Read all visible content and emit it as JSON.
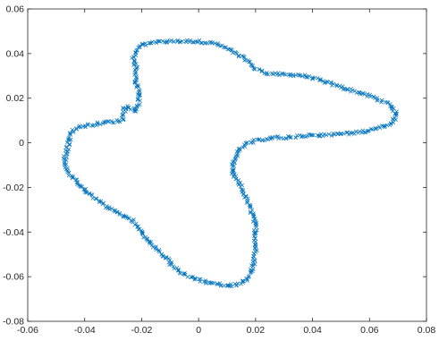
{
  "chart_data": {
    "type": "scatter",
    "title": "",
    "xlabel": "",
    "ylabel": "",
    "xlim": [
      -0.06,
      0.08
    ],
    "ylim": [
      -0.08,
      0.06
    ],
    "x_ticks": [
      "-0.06",
      "-0.04",
      "-0.02",
      "0",
      "0.02",
      "0.04",
      "0.06",
      "0.08"
    ],
    "y_ticks": [
      "-0.08",
      "-0.06",
      "-0.04",
      "-0.02",
      "0",
      "0.02",
      "0.04",
      "0.06"
    ],
    "grid": false,
    "marker": "x",
    "color": "#0072BD",
    "series": [
      {
        "outline": [
          [
            -0.015,
            0.045
          ],
          [
            -0.01,
            0.0455
          ],
          [
            -0.005,
            0.0455
          ],
          [
            0.0,
            0.0455
          ],
          [
            0.006,
            0.0445
          ],
          [
            0.012,
            0.041
          ],
          [
            0.017,
            0.037
          ],
          [
            0.02,
            0.033
          ],
          [
            0.025,
            0.031
          ],
          [
            0.03,
            0.0305
          ],
          [
            0.035,
            0.0305
          ],
          [
            0.04,
            0.029
          ],
          [
            0.045,
            0.027
          ],
          [
            0.05,
            0.025
          ],
          [
            0.055,
            0.023
          ],
          [
            0.06,
            0.021
          ],
          [
            0.064,
            0.019
          ],
          [
            0.067,
            0.017
          ],
          [
            0.069,
            0.014
          ],
          [
            0.069,
            0.011
          ],
          [
            0.068,
            0.009
          ],
          [
            0.064,
            0.007
          ],
          [
            0.06,
            0.0055
          ],
          [
            0.055,
            0.0045
          ],
          [
            0.05,
            0.004
          ],
          [
            0.045,
            0.0035
          ],
          [
            0.04,
            0.0035
          ],
          [
            0.035,
            0.003
          ],
          [
            0.03,
            0.0025
          ],
          [
            0.025,
            0.002
          ],
          [
            0.02,
            0.001
          ],
          [
            0.016,
            -0.001
          ],
          [
            0.014,
            -0.003
          ],
          [
            0.013,
            -0.007
          ],
          [
            0.012,
            -0.01
          ],
          [
            0.0115,
            -0.013
          ],
          [
            0.013,
            -0.016
          ],
          [
            0.015,
            -0.02
          ],
          [
            0.017,
            -0.026
          ],
          [
            0.019,
            -0.032
          ],
          [
            0.02,
            -0.038
          ],
          [
            0.02,
            -0.044
          ],
          [
            0.02,
            -0.05
          ],
          [
            0.019,
            -0.056
          ],
          [
            0.017,
            -0.061
          ],
          [
            0.014,
            -0.0635
          ],
          [
            0.01,
            -0.064
          ],
          [
            0.005,
            -0.063
          ],
          [
            0.0,
            -0.0615
          ],
          [
            -0.005,
            -0.059
          ],
          [
            -0.009,
            -0.055
          ],
          [
            -0.013,
            -0.05
          ],
          [
            -0.017,
            -0.045
          ],
          [
            -0.02,
            -0.04
          ],
          [
            -0.023,
            -0.035
          ],
          [
            -0.026,
            -0.033
          ],
          [
            -0.029,
            -0.031
          ],
          [
            -0.033,
            -0.028
          ],
          [
            -0.037,
            -0.024
          ],
          [
            -0.041,
            -0.02
          ],
          [
            -0.044,
            -0.016
          ],
          [
            -0.046,
            -0.013
          ],
          [
            -0.047,
            -0.01
          ],
          [
            -0.047,
            -0.007
          ],
          [
            -0.046,
            -0.002
          ],
          [
            -0.045,
            0.003
          ],
          [
            -0.044,
            0.006
          ],
          [
            -0.042,
            0.007
          ],
          [
            -0.038,
            0.008
          ],
          [
            -0.034,
            0.009
          ],
          [
            -0.03,
            0.0095
          ],
          [
            -0.027,
            0.01
          ],
          [
            -0.026,
            0.013
          ],
          [
            -0.026,
            0.016
          ],
          [
            -0.024,
            0.016
          ],
          [
            -0.022,
            0.014
          ],
          [
            -0.021,
            0.018
          ],
          [
            -0.021,
            0.022
          ],
          [
            -0.022,
            0.026
          ],
          [
            -0.022,
            0.03
          ],
          [
            -0.022,
            0.034
          ],
          [
            -0.023,
            0.038
          ],
          [
            -0.022,
            0.042
          ],
          [
            -0.02,
            0.044
          ],
          [
            -0.015,
            0.045
          ]
        ],
        "point_count": 700,
        "jitter": 0.0006
      }
    ]
  }
}
